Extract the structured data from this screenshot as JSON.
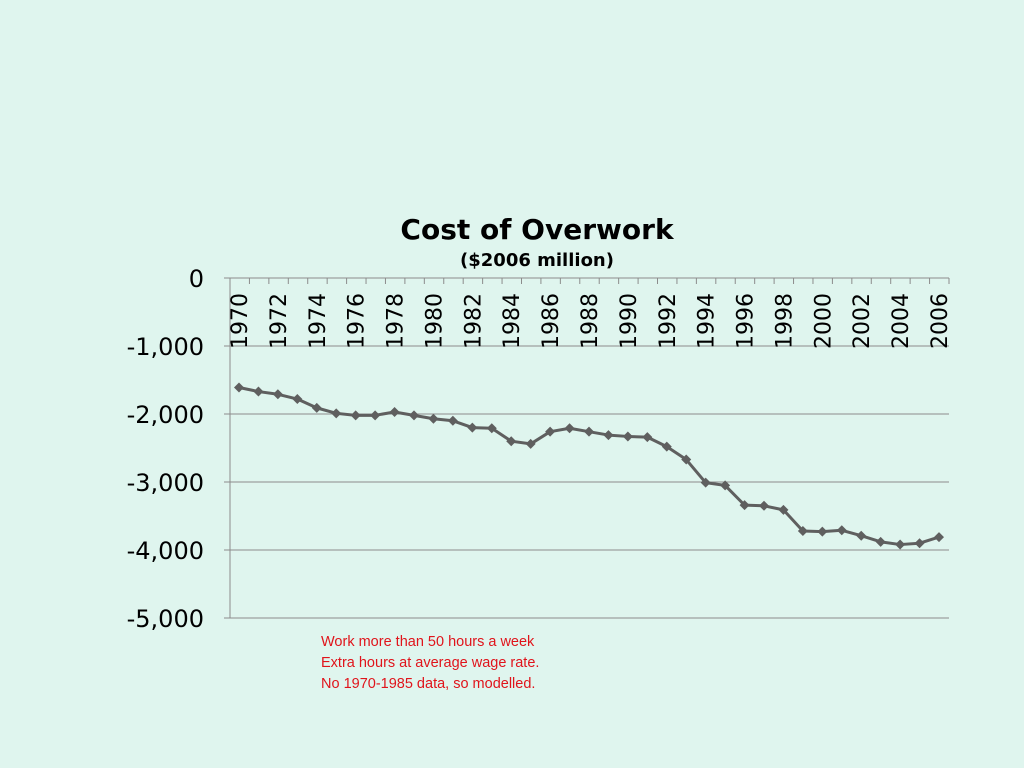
{
  "chart_data": {
    "type": "line",
    "title": "Cost of Overwork",
    "subtitle": "($2006 million)",
    "xlabel": "",
    "ylabel": "",
    "x": [
      1970,
      1971,
      1972,
      1973,
      1974,
      1975,
      1976,
      1977,
      1978,
      1979,
      1980,
      1981,
      1982,
      1983,
      1984,
      1985,
      1986,
      1987,
      1988,
      1989,
      1990,
      1991,
      1992,
      1993,
      1994,
      1995,
      1996,
      1997,
      1998,
      1999,
      2000,
      2001,
      2002,
      2003,
      2004,
      2005,
      2006
    ],
    "x_tick_labels": [
      "1970",
      "1972",
      "1974",
      "1976",
      "1978",
      "1980",
      "1982",
      "1984",
      "1986",
      "1988",
      "1990",
      "1992",
      "1994",
      "1996",
      "1998",
      "2000",
      "2002",
      "2004",
      "2006"
    ],
    "y_tick_labels": [
      "0",
      "-1,000",
      "-2,000",
      "-3,000",
      "-4,000",
      "-5,000"
    ],
    "ylim": [
      -5000,
      0
    ],
    "grid": "horizontal",
    "legend": "none",
    "series": [
      {
        "values": [
          -1610,
          -1670,
          -1710,
          -1780,
          -1910,
          -1990,
          -2020,
          -2020,
          -1970,
          -2020,
          -2070,
          -2100,
          -2200,
          -2210,
          -2400,
          -2440,
          -2260,
          -2210,
          -2260,
          -2310,
          -2330,
          -2340,
          -2480,
          -2670,
          -3010,
          -3050,
          -3340,
          -3350,
          -3410,
          -3720,
          -3730,
          -3710,
          -3790,
          -3880,
          -3920,
          -3900,
          -3810
        ],
        "color": "#5f5f5f"
      }
    ]
  },
  "notes": [
    "Work more than 50 hours a week",
    "Extra hours at average wage rate.",
    "No 1970-1985 data, so modelled."
  ]
}
